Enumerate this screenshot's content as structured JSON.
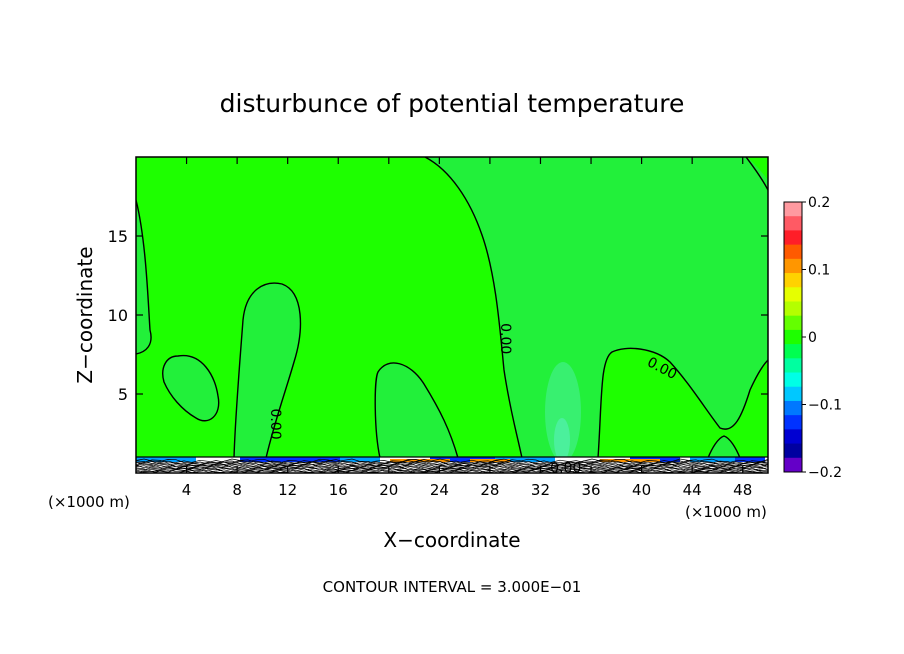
{
  "chart_data": {
    "type": "heatmap",
    "title": "disturbunce of potential temperature",
    "xlabel": "X−coordinate",
    "ylabel": "Z−coordinate",
    "x_unit_left": "(×1000 m)",
    "x_unit_right": "(×1000 m)",
    "xlim": [
      0,
      50
    ],
    "ylim": [
      0,
      20
    ],
    "x_ticks": [
      4,
      8,
      12,
      16,
      20,
      24,
      28,
      32,
      36,
      40,
      44,
      48
    ],
    "x_tick_labels": [
      "4",
      "8",
      "12",
      "16",
      "20",
      "24",
      "28",
      "32",
      "36",
      "40",
      "44",
      "48"
    ],
    "y_ticks": [
      5,
      10,
      15
    ],
    "y_tick_labels": [
      "5",
      "10",
      "15"
    ],
    "contour_labels": [
      {
        "text": "0.00",
        "x": 29.2,
        "y": 8.5,
        "rotation": 90
      },
      {
        "text": "0.00",
        "x": 11.0,
        "y": 3.1,
        "rotation": 90
      },
      {
        "text": "0.00",
        "x": 41.6,
        "y": 6.6,
        "rotation": 28
      },
      {
        "text": "0.00",
        "x": 34.0,
        "y": 0.3,
        "rotation": 0
      }
    ],
    "footer": "CONTOUR INTERVAL = 3.000E−01",
    "colorbar": {
      "min": -0.2,
      "max": 0.2,
      "tick_values": [
        0.2,
        0.1,
        0,
        -0.1,
        -0.2
      ],
      "tick_labels": [
        "0.2",
        "0.1",
        "0",
        "−0.1",
        "−0.2"
      ],
      "colors": [
        "#ff9aa0",
        "#ff5a64",
        "#ff1e28",
        "#ff5a00",
        "#ff9600",
        "#ffd200",
        "#e6ff00",
        "#b4ff00",
        "#64ff00",
        "#1eff00",
        "#00ff50",
        "#00ffa0",
        "#00ffe6",
        "#00c8ff",
        "#0078ff",
        "#0032ff",
        "#0000d2",
        "#0000a0",
        "#6400c8"
      ]
    },
    "background_color": "#1eff00",
    "interior_color": "#22f03a",
    "cell_color": "#3cf07a"
  }
}
